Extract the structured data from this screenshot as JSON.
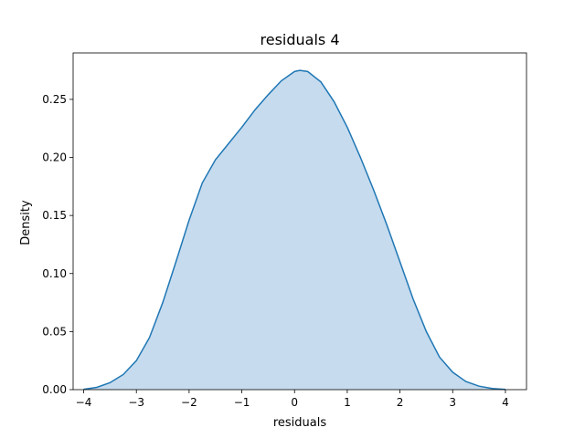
{
  "chart_data": {
    "type": "area",
    "title": "residuals 4",
    "xlabel": "residuals",
    "ylabel": "Density",
    "xlim": [
      -4.2,
      4.4
    ],
    "ylim": [
      0,
      0.29
    ],
    "xticks": [
      -4,
      -3,
      -2,
      -1,
      0,
      1,
      2,
      3,
      4
    ],
    "xtick_labels": [
      "−4",
      "−3",
      "−2",
      "−1",
      "0",
      "1",
      "2",
      "3",
      "4"
    ],
    "yticks": [
      0.0,
      0.05,
      0.1,
      0.15,
      0.2,
      0.25
    ],
    "ytick_labels": [
      "0.00",
      "0.05",
      "0.10",
      "0.15",
      "0.20",
      "0.25"
    ],
    "grid": false,
    "series": [
      {
        "color": "#1f77b4",
        "fill_color": "#c6dbee",
        "x": [
          -4.0,
          -3.75,
          -3.5,
          -3.25,
          -3.0,
          -2.75,
          -2.5,
          -2.25,
          -2.0,
          -1.75,
          -1.5,
          -1.25,
          -1.0,
          -0.75,
          -0.5,
          -0.25,
          0.0,
          0.1,
          0.25,
          0.5,
          0.75,
          1.0,
          1.25,
          1.5,
          1.75,
          2.0,
          2.25,
          2.5,
          2.75,
          3.0,
          3.25,
          3.5,
          3.75,
          4.0
        ],
        "y": [
          0.0003,
          0.002,
          0.006,
          0.013,
          0.025,
          0.045,
          0.075,
          0.11,
          0.146,
          0.178,
          0.198,
          0.212,
          0.226,
          0.241,
          0.254,
          0.266,
          0.274,
          0.275,
          0.274,
          0.265,
          0.248,
          0.226,
          0.2,
          0.172,
          0.142,
          0.11,
          0.078,
          0.05,
          0.028,
          0.015,
          0.007,
          0.003,
          0.001,
          0.0002
        ]
      }
    ]
  }
}
